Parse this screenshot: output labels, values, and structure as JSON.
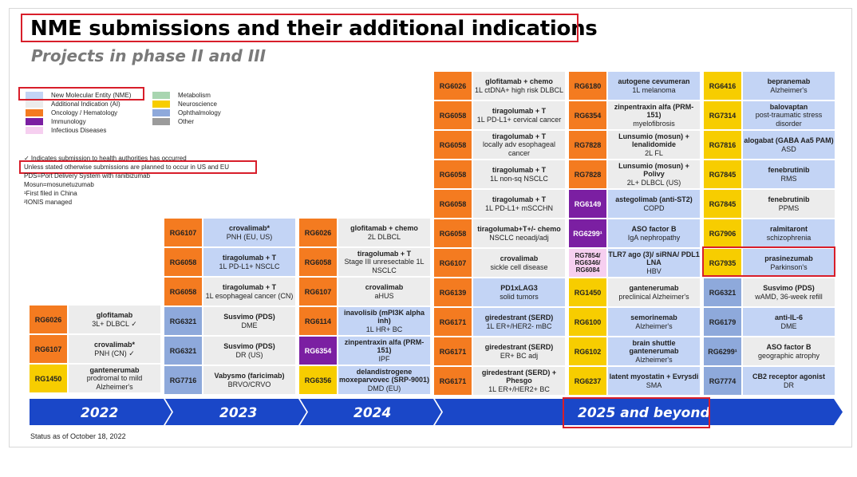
{
  "header": {
    "title": "NME submissions and their additional indications",
    "subtitle": "Projects in phase II and III"
  },
  "colors": {
    "nme": "#c3d4f5",
    "additional_indication": "#ececec",
    "oncology_hematology": "#f47b20",
    "immunology": "#7b1fa2",
    "infectious_diseases": "#f6cff0",
    "metabolism": "#a8d5b0",
    "neuroscience": "#f7cd00",
    "ophthalmology": "#8ea9db",
    "other": "#9b9b9b",
    "timeline": "#1a47c8",
    "highlight": "#d81e2a"
  },
  "legend": {
    "nme": "New Molecular Entity (NME)",
    "ai": "Additional Indication (AI)",
    "oncology": "Oncology / Hematology",
    "immunology": "Immunology",
    "infectious": "Infectious Diseases",
    "metabolism": "Metabolism",
    "neuroscience": "Neuroscience",
    "ophthalmology": "Ophthalmology",
    "other": "Other"
  },
  "notes": {
    "check": "✓ Indicates submission to health authorities has occurred",
    "unless": "Unless stated otherwise submissions are planned to occur in US and EU",
    "pds": "PDS=Port Delivery System with ranibizumab",
    "mosun": "Mosun=mosunetuzumab",
    "china": "¹First filed in China",
    "ionis": "²IONIS managed"
  },
  "columns": {
    "c2022": [
      {
        "code": "RG6026",
        "cat": "onc",
        "type": "ai",
        "name": "glofitamab",
        "text": "3L+ DLBCL ✓"
      },
      {
        "code": "RG6107",
        "cat": "onc",
        "type": "ai",
        "name": "crovalimab*",
        "text": "PNH (CN) ✓"
      },
      {
        "code": "RG1450",
        "cat": "neu",
        "type": "ai",
        "name": "gantenerumab",
        "text": "prodromal to mild Alzheimer's"
      }
    ],
    "c2023": [
      {
        "code": "RG6107",
        "cat": "onc",
        "type": "nme",
        "name": "crovalimab*",
        "text": "PNH (EU, US)"
      },
      {
        "code": "RG6058",
        "cat": "onc",
        "type": "nme",
        "name": "tiragolumab + T",
        "text": "1L PD-L1+ NSCLC"
      },
      {
        "code": "RG6058",
        "cat": "onc",
        "type": "ai",
        "name": "tiragolumab + T",
        "text": "1L esophageal cancer (CN)"
      },
      {
        "code": "RG6321",
        "cat": "oph",
        "type": "ai",
        "name": "Susvimo (PDS)",
        "text": "DME"
      },
      {
        "code": "RG6321",
        "cat": "oph",
        "type": "ai",
        "name": "Susvimo (PDS)",
        "text": "DR (US)"
      },
      {
        "code": "RG7716",
        "cat": "oph",
        "type": "ai",
        "name": "Vabysmo (faricimab)",
        "text": "BRVO/CRVO"
      }
    ],
    "c2024": [
      {
        "code": "RG6026",
        "cat": "onc",
        "type": "ai",
        "name": "glofitamab + chemo",
        "text": "2L DLBCL"
      },
      {
        "code": "RG6058",
        "cat": "onc",
        "type": "ai",
        "name": "tiragolumab + T",
        "text": "Stage III unresectable 1L NSCLC"
      },
      {
        "code": "RG6107",
        "cat": "onc",
        "type": "ai",
        "name": "crovalimab",
        "text": "aHUS"
      },
      {
        "code": "RG6114",
        "cat": "onc",
        "type": "nme",
        "name": "inavolisib (mPI3K alpha inh)",
        "text": "1L HR+ BC"
      },
      {
        "code": "RG6354",
        "cat": "imm",
        "type": "nme",
        "name": "zinpentraxin alfa (PRM-151)",
        "text": "IPF"
      },
      {
        "code": "RG6356",
        "cat": "neu",
        "type": "nme",
        "name": "delandistrogene moxeparvovec (SRP-9001)",
        "text": "DMD (EU)"
      }
    ],
    "c2025a": [
      {
        "code": "RG6026",
        "cat": "onc",
        "type": "ai",
        "name": "glofitamab + chemo",
        "text": "1L ctDNA+ high risk DLBCL"
      },
      {
        "code": "RG6058",
        "cat": "onc",
        "type": "ai",
        "name": "tiragolumab + T",
        "text": "1L PD-L1+ cervical cancer"
      },
      {
        "code": "RG6058",
        "cat": "onc",
        "type": "ai",
        "name": "tiragolumab + T",
        "text": "locally adv esophageal cancer"
      },
      {
        "code": "RG6058",
        "cat": "onc",
        "type": "ai",
        "name": "tiragolumab + T",
        "text": "1L non-sq NSCLC"
      },
      {
        "code": "RG6058",
        "cat": "onc",
        "type": "ai",
        "name": "tiragolumab + T",
        "text": "1L PD-L1+ mSCCHN"
      },
      {
        "code": "RG6058",
        "cat": "onc",
        "type": "ai",
        "name": "tiragolumab+T+/- chemo",
        "text": "NSCLC neoadj/adj"
      },
      {
        "code": "RG6107",
        "cat": "onc",
        "type": "ai",
        "name": "crovalimab",
        "text": "sickle cell disease"
      },
      {
        "code": "RG6139",
        "cat": "onc",
        "type": "nme",
        "name": "PD1xLAG3",
        "text": "solid tumors"
      },
      {
        "code": "RG6171",
        "cat": "onc",
        "type": "nme",
        "name": "giredestrant (SERD)",
        "text": "1L ER+/HER2- mBC"
      },
      {
        "code": "RG6171",
        "cat": "onc",
        "type": "ai",
        "name": "giredestrant (SERD)",
        "text": "ER+ BC adj"
      },
      {
        "code": "RG6171",
        "cat": "onc",
        "type": "ai",
        "name": "giredestrant (SERD) + Phesgo",
        "text": "1L ER+/HER2+ BC"
      }
    ],
    "c2025b": [
      {
        "code": "RG6180",
        "cat": "onc",
        "type": "nme",
        "name": "autogene cevumeran",
        "text": "1L melanoma"
      },
      {
        "code": "RG6354",
        "cat": "onc",
        "type": "ai",
        "name": "zinpentraxin alfa (PRM-151)",
        "text": "myelofibrosis"
      },
      {
        "code": "RG7828",
        "cat": "onc",
        "type": "ai",
        "name": "Lunsumio (mosun) + lenalidomide",
        "text": "2L FL"
      },
      {
        "code": "RG7828",
        "cat": "onc",
        "type": "ai",
        "name": "Lunsumio (mosun) + Polivy",
        "text": "2L+ DLBCL (US)"
      },
      {
        "code": "RG6149",
        "cat": "imm",
        "type": "nme",
        "name": "astegolimab (anti-ST2)",
        "text": "COPD"
      },
      {
        "code": "RG6299¹",
        "cat": "imm",
        "type": "nme",
        "name": "ASO factor B",
        "text": "IgA nephropathy"
      },
      {
        "code": "RG7854/ RG6346/ RG6084",
        "cat": "inf",
        "type": "nme",
        "name": "TLR7 ago (3)/ siRNA/ PDL1 LNA",
        "text": "HBV"
      },
      {
        "code": "RG1450",
        "cat": "neu",
        "type": "ai",
        "name": "gantenerumab",
        "text": "preclinical Alzheimer's"
      },
      {
        "code": "RG6100",
        "cat": "neu",
        "type": "nme",
        "name": "semorinemab",
        "text": "Alzheimer's"
      },
      {
        "code": "RG6102",
        "cat": "neu",
        "type": "nme",
        "name": "brain shuttle gantenerumab",
        "text": "Alzheimer's"
      },
      {
        "code": "RG6237",
        "cat": "neu",
        "type": "nme",
        "name": "latent myostatin + Evrysdi",
        "text": "SMA"
      }
    ],
    "c2025c": [
      {
        "code": "RG6416",
        "cat": "neu",
        "type": "nme",
        "name": "bepranemab",
        "text": "Alzheimer's"
      },
      {
        "code": "RG7314",
        "cat": "neu",
        "type": "nme",
        "name": "balovaptan",
        "text": "post-traumatic stress disorder"
      },
      {
        "code": "RG7816",
        "cat": "neu",
        "type": "nme",
        "name": "alogabat (GABA Aa5 PAM)",
        "text": "ASD"
      },
      {
        "code": "RG7845",
        "cat": "neu",
        "type": "nme",
        "name": "fenebrutinib",
        "text": "RMS"
      },
      {
        "code": "RG7845",
        "cat": "neu",
        "type": "ai",
        "name": "fenebrutinib",
        "text": "PPMS"
      },
      {
        "code": "RG7906",
        "cat": "neu",
        "type": "nme",
        "name": "ralmitaront",
        "text": "schizophrenia"
      },
      {
        "code": "RG7935",
        "cat": "neu",
        "type": "nme",
        "name": "prasinezumab",
        "text": "Parkinson's"
      },
      {
        "code": "RG6321",
        "cat": "oph",
        "type": "ai",
        "name": "Susvimo (PDS)",
        "text": "wAMD, 36-week refill"
      },
      {
        "code": "RG6179",
        "cat": "oph",
        "type": "nme",
        "name": "anti-IL-6",
        "text": "DME"
      },
      {
        "code": "RG6299¹",
        "cat": "oph",
        "type": "ai",
        "name": "ASO factor B",
        "text": "geographic atrophy"
      },
      {
        "code": "RG7774",
        "cat": "oph",
        "type": "nme",
        "name": "CB2 receptor agonist",
        "text": "DR"
      }
    ]
  },
  "timeline": {
    "y2022": "2022",
    "y2023": "2023",
    "y2024": "2024",
    "y2025": "2025 and beyond"
  },
  "status": "Status as of October 18, 2022"
}
